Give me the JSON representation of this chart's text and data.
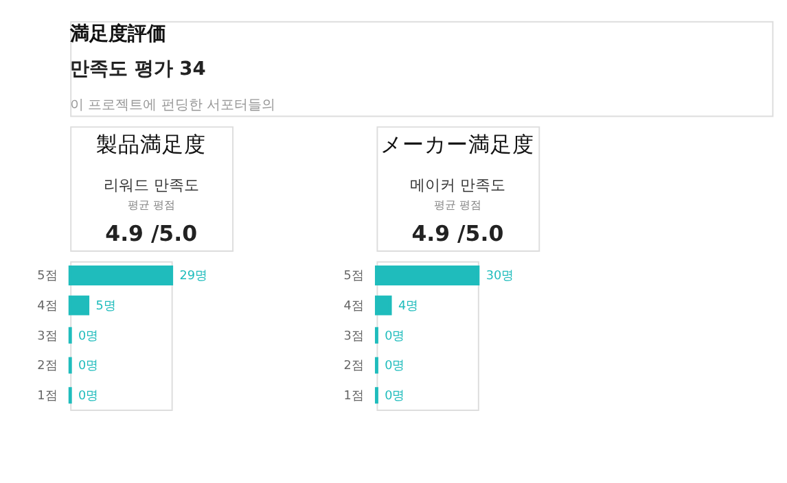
{
  "chart_data": [
    {
      "type": "other",
      "title": "満足度評価",
      "subtitle": "만족도 평가 34",
      "annotations": [
        "이 프로젝트에 펀딩한 서포터들의"
      ]
    },
    {
      "type": "bar",
      "orientation": "horizontal",
      "title": "리워드 만족도",
      "subtitle": "평균 평점",
      "annotations": [
        "製品満足度",
        "4.9 /5.0"
      ],
      "categories": [
        "5점",
        "4점",
        "3점",
        "2점",
        "1점"
      ],
      "values": [
        29,
        5,
        0,
        0,
        0
      ],
      "value_labels": [
        "29명",
        "5명",
        "0명",
        "0명",
        "0명"
      ],
      "color": "#1fbcbc"
    },
    {
      "type": "bar",
      "orientation": "horizontal",
      "title": "메이커 만족도",
      "subtitle": "평균 평점",
      "annotations": [
        "メーカー満足度",
        "4.9 /5.0"
      ],
      "categories": [
        "5점",
        "4점",
        "3점",
        "2점",
        "1점"
      ],
      "values": [
        30,
        4,
        0,
        0,
        0
      ],
      "value_labels": [
        "30명",
        "4명",
        "0명",
        "0명",
        "0명"
      ],
      "color": "#1fbcbc"
    }
  ]
}
